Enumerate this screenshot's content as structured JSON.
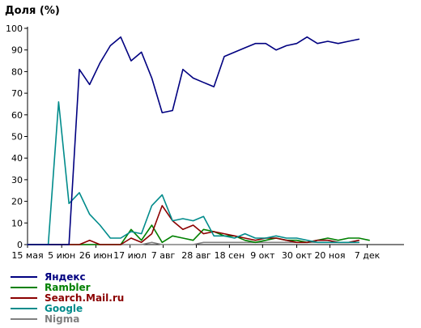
{
  "chart_data": {
    "type": "line",
    "title": "Доля (%)",
    "xlabel": "",
    "ylabel": "",
    "ylim": [
      0,
      100
    ],
    "yticks": [
      0,
      10,
      20,
      30,
      40,
      50,
      60,
      70,
      80,
      90,
      100
    ],
    "x_tick_labels": [
      "15 мая",
      "5 июн",
      "26 июн",
      "17 июл",
      "7 авг",
      "28 авг",
      "18 сен",
      "9 окт",
      "30 окт",
      "20 ноя",
      "7 дек"
    ],
    "x_index": [
      0,
      1,
      2,
      3,
      4,
      5,
      6,
      7,
      8,
      9,
      10,
      11,
      12,
      13,
      14,
      15,
      16,
      17,
      18,
      19,
      20,
      21,
      22,
      23,
      24,
      25,
      26,
      27,
      28,
      29,
      30,
      31,
      32,
      33,
      34,
      35,
      36
    ],
    "x_tick_positions": [
      0,
      3.3,
      6.6,
      9.9,
      13.1,
      16.3,
      19.5,
      22.7,
      26.0,
      29.2,
      32.8
    ],
    "x_range": [
      0,
      36.2
    ],
    "grid": false,
    "legend_position": "bottom-left",
    "series": [
      {
        "name": "Яндекс",
        "color": "#000080",
        "values": [
          0,
          0,
          0,
          0,
          0,
          81,
          74,
          84,
          92,
          96,
          85,
          89,
          77,
          61,
          62,
          81,
          77,
          75,
          73,
          87,
          89,
          91,
          93,
          93,
          90,
          92,
          93,
          96,
          93,
          94,
          93,
          94,
          95,
          null,
          null,
          null,
          null
        ]
      },
      {
        "name": "Rambler",
        "color": "#008000",
        "values": [
          0,
          0,
          0,
          0,
          0,
          0,
          0,
          0,
          0,
          0,
          7,
          2,
          9,
          1,
          4,
          3,
          2,
          7,
          6,
          4,
          4,
          2,
          1,
          2,
          3,
          2,
          2,
          1,
          2,
          3,
          2,
          3,
          3,
          2,
          null,
          null,
          null
        ]
      },
      {
        "name": "Search.Mail.ru",
        "color": "#8b0000",
        "values": [
          0,
          0,
          0,
          0,
          0,
          0,
          2,
          0,
          0,
          0,
          3,
          1,
          5,
          18,
          11,
          7,
          9,
          5,
          6,
          5,
          4,
          3,
          2,
          3,
          3,
          2,
          1,
          1,
          2,
          2,
          1,
          1,
          2,
          null,
          null,
          null,
          null
        ]
      },
      {
        "name": "Google",
        "color": "#008b8b",
        "values": [
          0,
          0,
          0,
          66,
          19,
          24,
          14,
          9,
          3,
          3,
          6,
          5,
          18,
          23,
          11,
          12,
          11,
          13,
          4,
          4,
          3,
          5,
          3,
          3,
          4,
          3,
          3,
          2,
          1,
          1,
          1,
          1,
          1,
          null,
          null,
          null,
          null
        ]
      },
      {
        "name": "Nigma",
        "color": "#808080",
        "values": [
          0,
          0,
          0,
          0,
          0,
          0,
          0,
          0,
          0,
          0,
          0,
          0,
          1,
          0,
          0,
          0,
          0,
          1,
          1,
          1,
          1,
          1,
          1,
          1,
          1,
          1,
          1,
          1,
          1,
          1,
          1,
          1,
          1,
          null,
          null,
          null,
          null
        ]
      }
    ]
  }
}
